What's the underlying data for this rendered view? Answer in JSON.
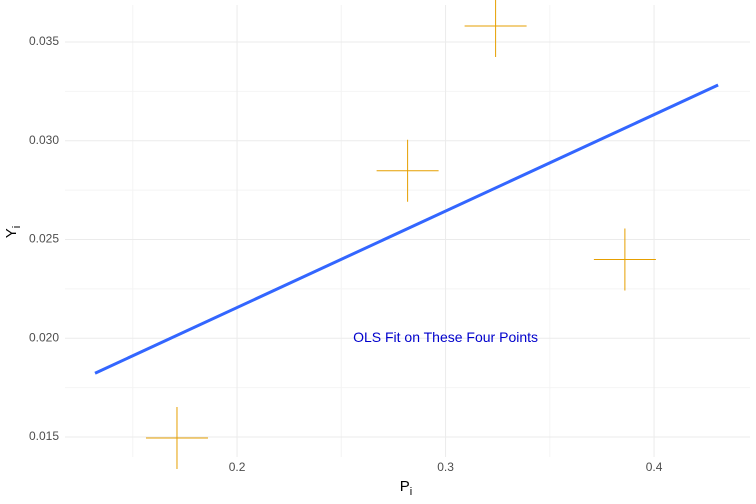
{
  "chart_data": {
    "type": "scatter",
    "xlabel": "P",
    "xlabel_sub": "i",
    "ylabel": "Y",
    "ylabel_sub": "i",
    "xlim": [
      0.1175,
      0.446
    ],
    "ylim": [
      0.01399,
      0.03687
    ],
    "xticks": [
      0.2,
      0.3,
      0.4
    ],
    "yticks": [
      0.015,
      {
        "value": 0.02,
        "label": "0.020"
      },
      0.025,
      {
        "value": 0.03,
        "label": "0.030"
      },
      0.035
    ],
    "grid": true,
    "series": [
      {
        "type": "scatter",
        "color": "#e69f00",
        "x": [
          0.1712,
          0.2818,
          0.324,
          0.386
        ],
        "values": [
          0.01495,
          0.02848,
          0.03581,
          0.02399
        ]
      },
      {
        "type": "line",
        "color": "#3366ff",
        "x": [
          0.1319,
          0.4307
        ],
        "values": [
          0.01823,
          0.03282
        ]
      }
    ],
    "annotations": [
      {
        "text": "OLS Fit on These Four Points",
        "x": 0.3,
        "y": 0.02,
        "color": "#0000cc"
      }
    ]
  }
}
